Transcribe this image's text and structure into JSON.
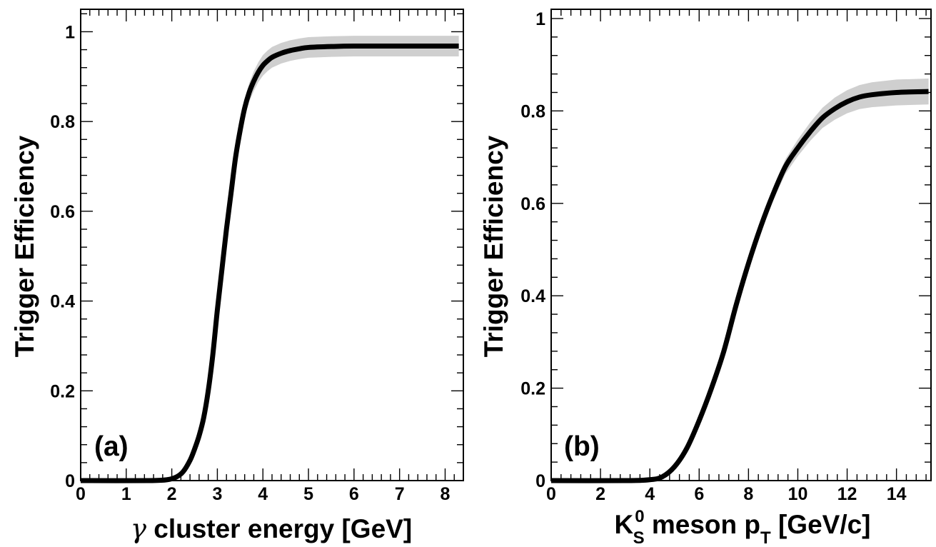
{
  "chart_data": [
    {
      "type": "line",
      "panel_label": "(a)",
      "xlabel_symbol": "γ",
      "xlabel_text": " cluster energy [GeV]",
      "ylabel": "Trigger Efficiency",
      "xlim": [
        0,
        8.4
      ],
      "ylim": [
        0,
        1.05
      ],
      "xticks": [
        0,
        1,
        2,
        3,
        4,
        5,
        6,
        7,
        8
      ],
      "xtick_labels": [
        "0",
        "1",
        "2",
        "3",
        "4",
        "5",
        "6",
        "7",
        "8"
      ],
      "xminor_step": 0.2,
      "yticks": [
        0,
        0.2,
        0.4,
        0.6,
        0.8,
        1
      ],
      "ytick_labels": [
        "0",
        "0.2",
        "0.4",
        "0.6",
        "0.8",
        "1"
      ],
      "yminor_step": 0.04,
      "grid": false,
      "series": [
        {
          "x": [
            0,
            1.5,
            1.9,
            2.1,
            2.25,
            2.4,
            2.5,
            2.6,
            2.7,
            2.8,
            2.9,
            3.0,
            3.1,
            3.2,
            3.3,
            3.4,
            3.5,
            3.6,
            3.7,
            3.8,
            3.9,
            4.0,
            4.1,
            4.2,
            4.4,
            4.6,
            4.8,
            5.0,
            5.5,
            6.0,
            7.0,
            8.3
          ],
          "y": [
            0,
            0,
            0.002,
            0.008,
            0.02,
            0.045,
            0.07,
            0.1,
            0.14,
            0.2,
            0.28,
            0.38,
            0.47,
            0.56,
            0.64,
            0.72,
            0.78,
            0.83,
            0.865,
            0.89,
            0.91,
            0.925,
            0.935,
            0.943,
            0.952,
            0.958,
            0.962,
            0.965,
            0.967,
            0.968,
            0.968,
            0.968
          ],
          "band_halfwidth": [
            0,
            0,
            0.002,
            0.004,
            0.006,
            0.008,
            0.009,
            0.01,
            0.011,
            0.012,
            0.013,
            0.014,
            0.015,
            0.016,
            0.017,
            0.018,
            0.019,
            0.02,
            0.021,
            0.022,
            0.022,
            0.023,
            0.023,
            0.023,
            0.023,
            0.023,
            0.023,
            0.023,
            0.023,
            0.023,
            0.023,
            0.023
          ]
        }
      ]
    },
    {
      "type": "line",
      "panel_label": "(b)",
      "xlabel_text": " meson p",
      "xlabel_K": "K",
      "xlabel_K_sub": "S",
      "xlabel_K_sup": "0",
      "xlabel_p_sub": "T",
      "xlabel_units": " [GeV/c]",
      "ylabel": "Trigger Efficiency",
      "xlim": [
        0,
        15.4
      ],
      "ylim": [
        0,
        1.02
      ],
      "xticks": [
        0,
        2,
        4,
        6,
        8,
        10,
        12,
        14
      ],
      "xtick_labels": [
        "0",
        "2",
        "4",
        "6",
        "8",
        "10",
        "12",
        "14"
      ],
      "xminor_step": 0.4,
      "yticks": [
        0,
        0.2,
        0.4,
        0.6,
        0.8,
        1
      ],
      "ytick_labels": [
        "0",
        "0.2",
        "0.4",
        "0.6",
        "0.8",
        "1"
      ],
      "yminor_step": 0.04,
      "grid": false,
      "series": [
        {
          "x": [
            0,
            3.0,
            4.0,
            4.5,
            5.0,
            5.5,
            6.0,
            6.5,
            7.0,
            7.5,
            8.0,
            8.5,
            9.0,
            9.5,
            10.0,
            10.5,
            11.0,
            11.5,
            12.0,
            12.5,
            13.0,
            14.0,
            15.3
          ],
          "y": [
            0,
            0,
            0.002,
            0.008,
            0.03,
            0.07,
            0.13,
            0.2,
            0.28,
            0.38,
            0.47,
            0.55,
            0.62,
            0.68,
            0.72,
            0.755,
            0.785,
            0.805,
            0.82,
            0.83,
            0.835,
            0.84,
            0.842
          ],
          "band_halfwidth": [
            0,
            0,
            0.002,
            0.003,
            0.005,
            0.006,
            0.007,
            0.008,
            0.009,
            0.01,
            0.011,
            0.012,
            0.014,
            0.016,
            0.018,
            0.02,
            0.022,
            0.024,
            0.025,
            0.026,
            0.027,
            0.028,
            0.028
          ]
        }
      ]
    }
  ]
}
